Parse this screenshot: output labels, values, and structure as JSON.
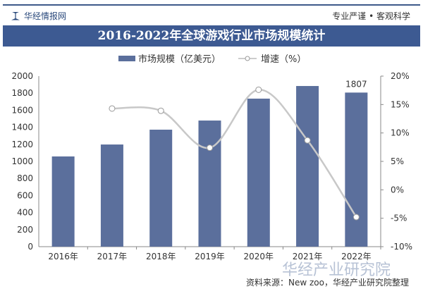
{
  "header": {
    "brand": "华经情报网",
    "slogan": "专业严谨 • 客观科学",
    "title": "2016-2022年全球游戏行业市场规模统计"
  },
  "footer": {
    "source": "资料来源：New zoo，华经产业研究院整理",
    "watermark": "华经产业研究院"
  },
  "chart_data": {
    "type": "bar+line",
    "title": "2016-2022年全球游戏行业市场规模统计",
    "categories": [
      "2016年",
      "2017年",
      "2018年",
      "2019年",
      "2020年",
      "2021年",
      "2022年"
    ],
    "series": [
      {
        "name": "市场规模（亿美元）",
        "type": "bar",
        "axis": "left",
        "color": "#5b6f9c",
        "values": [
          1058,
          1198,
          1372,
          1479,
          1736,
          1884,
          1807
        ]
      },
      {
        "name": "增速（%）",
        "type": "line",
        "axis": "right",
        "color": "#c8c8c8",
        "values": [
          null,
          14.3,
          13.9,
          7.4,
          17.6,
          8.7,
          -4.8
        ]
      }
    ],
    "data_labels": [
      {
        "category": "2022年",
        "text": "1807"
      }
    ],
    "left_axis": {
      "ylim": [
        0,
        2000
      ],
      "ticks": [
        "0",
        "200",
        "400",
        "600",
        "800",
        "1000",
        "1200",
        "1400",
        "1600",
        "1800",
        "2000"
      ]
    },
    "right_axis": {
      "ylim": [
        -10,
        20
      ],
      "ticks": [
        "-10%",
        "-5%",
        "0%",
        "5%",
        "10%",
        "15%",
        "20%"
      ]
    },
    "legend": "top-center",
    "grid": false
  }
}
